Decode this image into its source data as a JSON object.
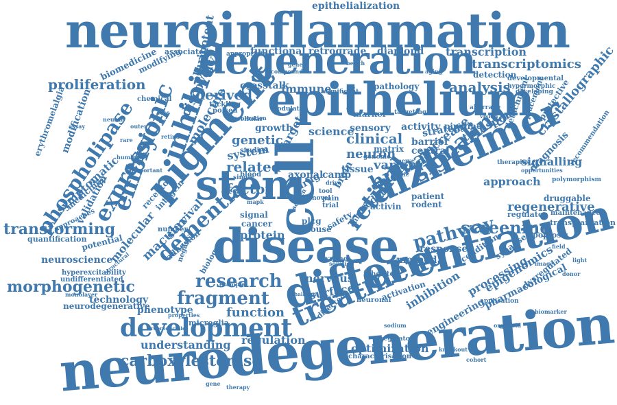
{
  "colors": {
    "word": "#3f79ad",
    "background": "#ffffff"
  },
  "words": [
    "neuroinflammation",
    "neurodegeneration",
    "differentiation",
    "epithelium",
    "disease",
    "degeneration",
    "alzheimer",
    "pigment",
    "stem",
    "cell",
    "treatment",
    "development",
    "retinal",
    "inhibitor",
    "embryonic",
    "expression",
    "signaling",
    "dementia",
    "phospholipase",
    "research",
    "fragment",
    "carboxylesterase",
    "human",
    "screening",
    "pathway",
    "morphogenetic",
    "transforming",
    "proliferation",
    "analysis",
    "clinical",
    "regenerative",
    "transcriptomics",
    "transcription",
    "diamond",
    "epithelialization",
    "functional",
    "retrograde",
    "derived",
    "molecule",
    "discovery",
    "pluripotent",
    "crosstalk",
    "immune",
    "pathology",
    "variant",
    "neuron",
    "regulation",
    "function",
    "factor",
    "protein",
    "related",
    "growth",
    "genetic",
    "sensory",
    "activity",
    "pipeline",
    "science",
    "system",
    "target",
    "drug",
    "brain",
    "increase",
    "transport",
    "approach",
    "signalling",
    "crystallographic",
    "macular",
    "molecular",
    "survival",
    "adhesion",
    "neuroscience",
    "biomedicine",
    "modifying",
    "receptor",
    "integrin",
    "symptomatic",
    "validation",
    "medicine",
    "quantification",
    "potential",
    "technology",
    "neurodegenerative",
    "phenotype",
    "understanding",
    "inhibition",
    "processing",
    "epigenomics",
    "engineering",
    "optimization",
    "response",
    "method",
    "nervous",
    "surface",
    "enzyme",
    "mouse",
    "plcg",
    "safety",
    "model",
    "culture",
    "activin",
    "patient",
    "rodent",
    "regulator",
    "apoptosis",
    "synapse",
    "condition",
    "transplantation",
    "maintenance",
    "druggable",
    "pharmacological",
    "dysregulated",
    "application",
    "characterisation",
    "regulatory",
    "neuronal",
    "activation",
    "directed",
    "inherited",
    "tissue",
    "matrix",
    "central",
    "barrier",
    "strategy",
    "marker",
    "axonal",
    "camp",
    "cancer",
    "signal",
    "erythromelalgia",
    "modification",
    "hyperexcitability",
    "undifferentiated",
    "microglia",
    "biology",
    "detection",
    "developmental",
    "hypermorphic",
    "diagnosis",
    "recommendation",
    "polymorphism",
    "therapies",
    "opportunities",
    "detachment",
    "replacement",
    "protective",
    "developing",
    "associated",
    "appropriate",
    "chemical",
    "aberrant",
    "targeting",
    "significant",
    "channel",
    "modulate",
    "tackling",
    "poised",
    "cellular",
    "single",
    "studies",
    "blood",
    "genome",
    "mapk",
    "screen",
    "trial",
    "pain",
    "novel",
    "tool",
    "drive",
    "structural",
    "monolayer",
    "important",
    "neurite",
    "approaches",
    "number",
    "negative",
    "properties",
    "reproducible",
    "example",
    "challenge",
    "solution",
    "nerve",
    "role",
    "toxic",
    "generation",
    "compound",
    "genes",
    "bench",
    "aging",
    "vision",
    "loss",
    "retina",
    "outer",
    "rare",
    "local",
    "small",
    "field",
    "image",
    "light",
    "donor",
    "sodium",
    "lipid",
    "knockout",
    "gene",
    "therapy",
    "cohort",
    "organoid",
    "neural",
    "human",
    "biomarker",
    "assay"
  ]
}
